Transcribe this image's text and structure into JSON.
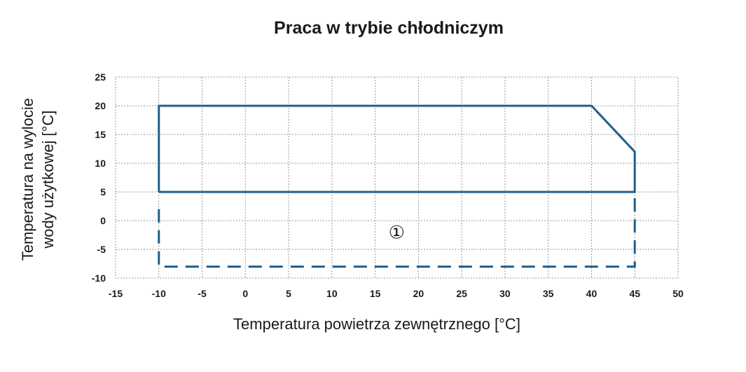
{
  "chart_data": {
    "type": "line",
    "title": "Praca w trybie chłodniczym",
    "xlabel": "Temperatura powietrza zewnętrznego [°C]",
    "ylabel_lines": [
      "Temperatura na wylocie",
      "wody użytkowej [°C]"
    ],
    "xlim": [
      -15,
      50
    ],
    "ylim": [
      -10,
      25
    ],
    "xticks": [
      -15,
      -10,
      -5,
      0,
      5,
      10,
      15,
      20,
      25,
      30,
      35,
      40,
      45,
      50
    ],
    "yticks": [
      -10,
      -5,
      0,
      5,
      10,
      15,
      20,
      25
    ],
    "grid": true,
    "line_color": "#1f5f8b",
    "series": [
      {
        "style": "solid",
        "points": [
          [
            -10,
            5
          ],
          [
            -10,
            20
          ],
          [
            40,
            20
          ],
          [
            45,
            12
          ],
          [
            45,
            5
          ],
          [
            -10,
            5
          ]
        ]
      },
      {
        "style": "dashed",
        "points": [
          [
            -10,
            2
          ],
          [
            -10,
            -8
          ],
          [
            45,
            -8
          ],
          [
            45,
            4
          ]
        ]
      }
    ],
    "annotations": [
      {
        "text": "①",
        "x": 17,
        "y": -2
      }
    ]
  }
}
